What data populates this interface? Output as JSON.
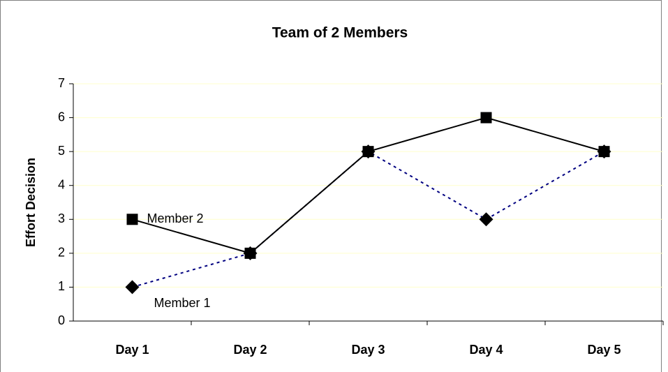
{
  "chart_data": {
    "type": "line",
    "title": "Team of 2 Members",
    "y_label": "Effort Decision",
    "categories": [
      "Day 1",
      "Day 2",
      "Day 3",
      "Day 4",
      "Day 5"
    ],
    "series": [
      {
        "name": "Member 1",
        "color": "#000080",
        "marker_color": "#000000",
        "marker": "diamond",
        "line_style": "dotted",
        "values": [
          1,
          2,
          5,
          3,
          5
        ]
      },
      {
        "name": "Member 2",
        "color": "#000000",
        "marker_color": "#000000",
        "marker": "square",
        "line_style": "solid",
        "values": [
          3,
          2,
          5,
          6,
          5
        ]
      }
    ],
    "ylim": [
      0,
      7
    ],
    "yticks": [
      0,
      1,
      2,
      3,
      4,
      5,
      6,
      7
    ],
    "grid": true,
    "grid_color": "#ffffcc"
  }
}
